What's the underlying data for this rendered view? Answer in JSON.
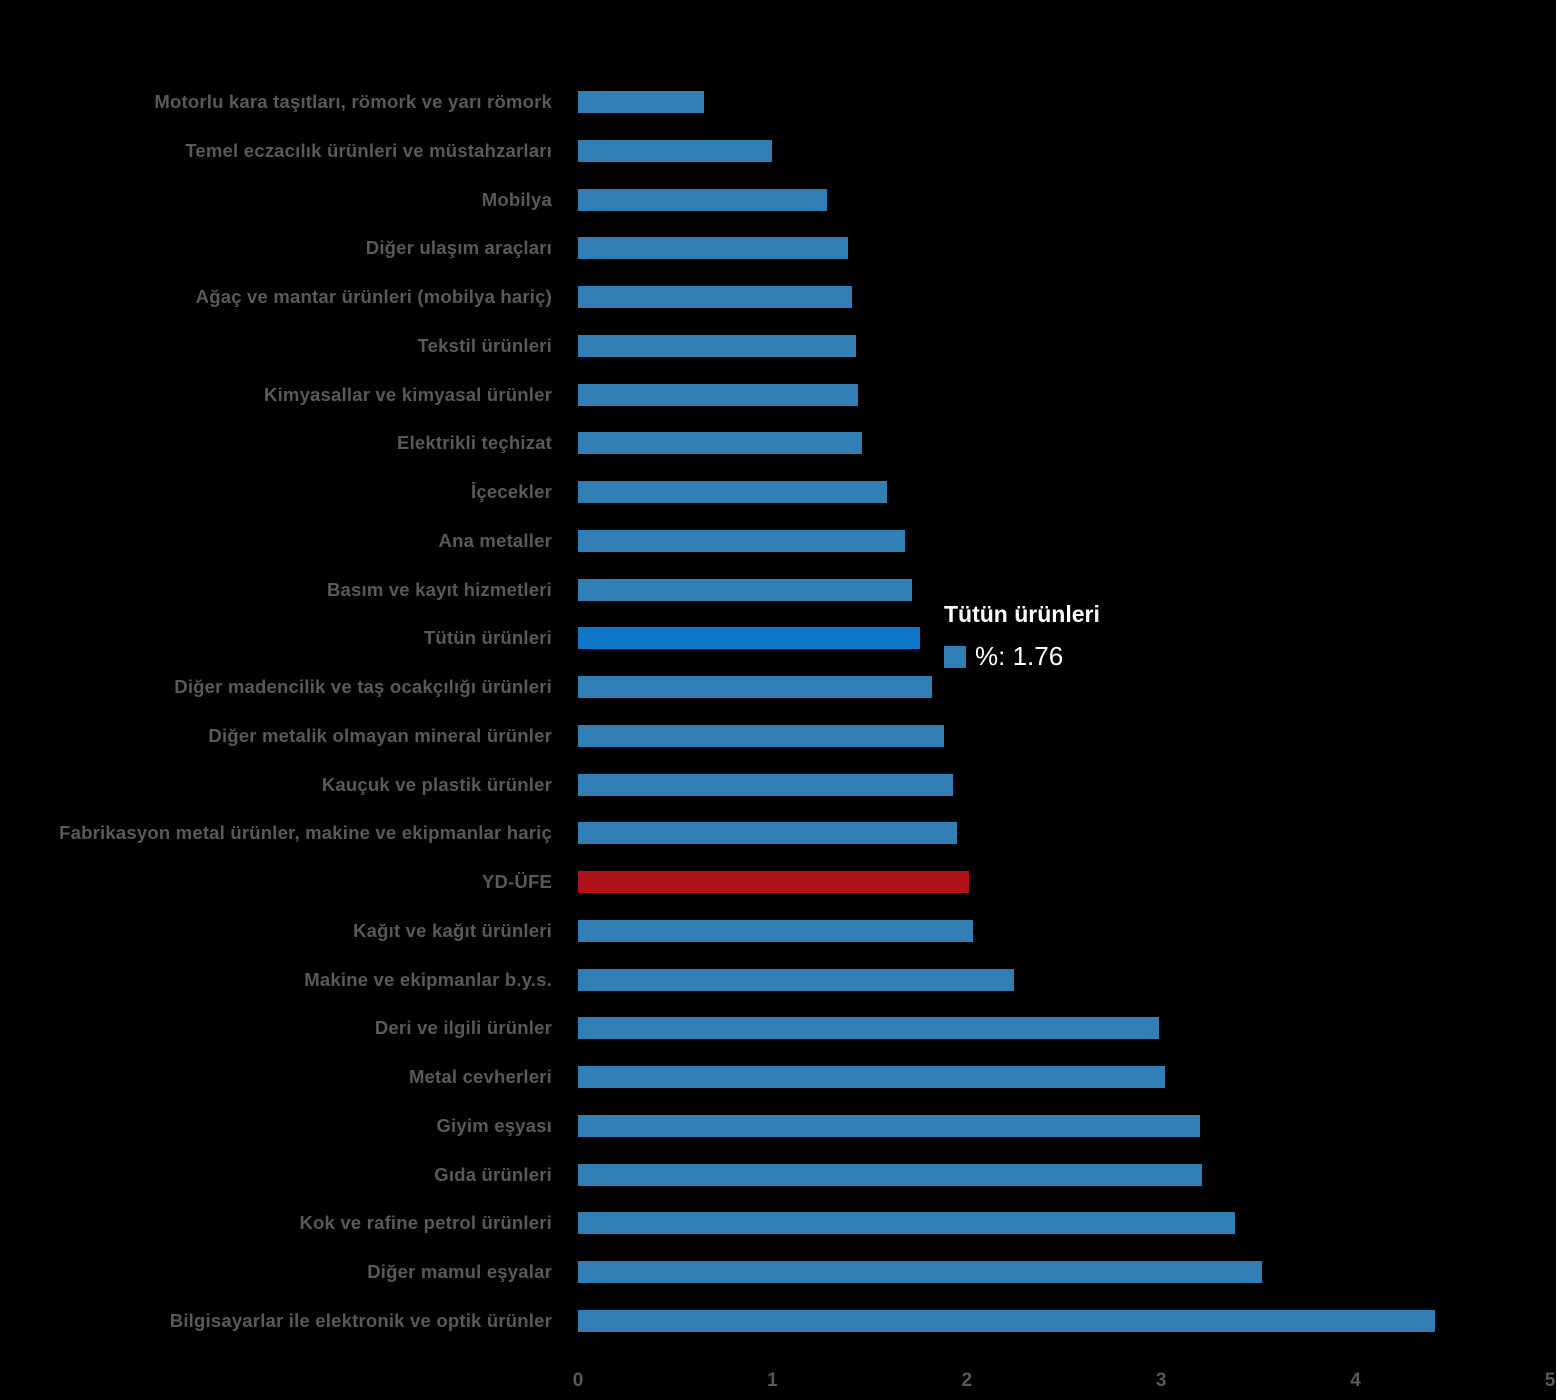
{
  "chart_data": {
    "type": "bar",
    "orientation": "horizontal",
    "title": "",
    "xlabel": "",
    "ylabel": "",
    "series_name": "%",
    "xlim": [
      0,
      5
    ],
    "x_ticks": [
      "0",
      "1",
      "2",
      "3",
      "4",
      "5"
    ],
    "grid": false,
    "legend": "none",
    "categories": [
      "Motorlu kara taşıtları, römork ve yarı römork",
      "Temel eczacılık ürünleri ve müstahzarları",
      "Mobilya",
      "Diğer ulaşım araçları",
      "Ağaç ve mantar ürünleri (mobilya hariç)",
      "Tekstil ürünleri",
      "Kimyasallar ve kimyasal ürünler",
      "Elektrikli teçhizat",
      "İçecekler",
      "Ana metaller",
      "Basım ve kayıt hizmetleri",
      "Tütün ürünleri",
      "Diğer madencilik ve taş ocakçılığı ürünleri",
      "Diğer metalik olmayan mineral ürünler",
      "Kauçuk ve plastik ürünler",
      "Fabrikasyon metal ürünler, makine ve ekipmanlar hariç",
      "YD-ÜFE",
      "Kağıt ve kağıt ürünleri",
      "Makine ve ekipmanlar b.y.s.",
      "Deri ve ilgili ürünler",
      "Metal cevherleri",
      "Giyim eşyası",
      "Gıda ürünleri",
      "Kok ve rafine petrol ürünleri",
      "Diğer mamul eşyalar",
      "Bilgisayarlar ile elektronik ve optik ürünler"
    ],
    "values": [
      0.65,
      1.0,
      1.28,
      1.39,
      1.41,
      1.43,
      1.44,
      1.46,
      1.59,
      1.68,
      1.72,
      1.76,
      1.82,
      1.88,
      1.93,
      1.95,
      2.01,
      2.03,
      2.24,
      2.99,
      3.02,
      3.2,
      3.21,
      3.38,
      3.52,
      4.41
    ],
    "highlight_category": "Tütün ürünleri",
    "emphasis_category": "YD-ÜFE",
    "colors": {
      "background": "#000000",
      "bar": "#307EB4",
      "bar_highlight": "#1076C8",
      "bar_emphasis": "#AF1218",
      "label": "#595959",
      "tick": "#595959",
      "tooltip_text": "#FFFFFF"
    }
  },
  "tooltip": {
    "title": "Tütün ürünleri",
    "swatch_color": "#307EB4",
    "value_text": "%: 1.76"
  }
}
